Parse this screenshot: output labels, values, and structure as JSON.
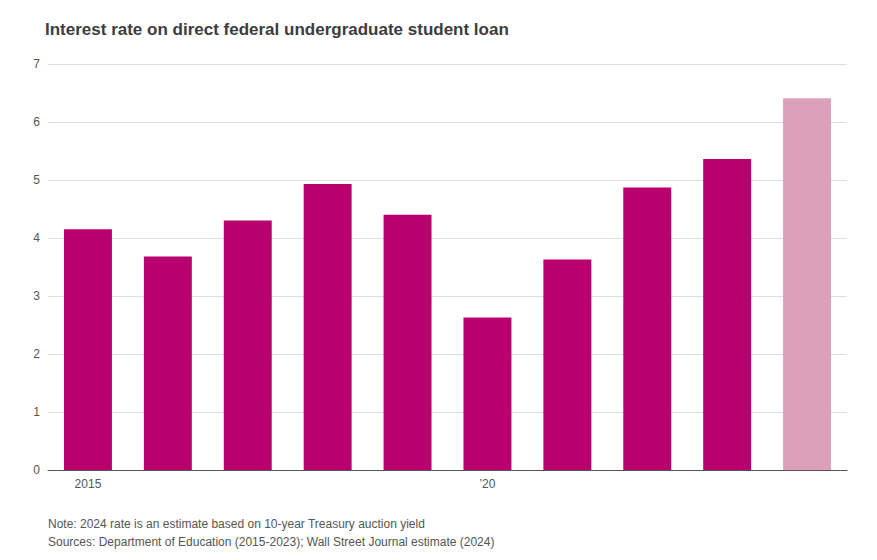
{
  "chart_data": {
    "type": "bar",
    "title": "Interest rate on direct federal undergraduate student loan",
    "categories": [
      "2015",
      null,
      null,
      null,
      null,
      "’20",
      null,
      null,
      null,
      null
    ],
    "values": [
      4.15,
      3.68,
      4.3,
      4.93,
      4.4,
      2.63,
      3.63,
      4.87,
      5.36,
      6.41
    ],
    "colors": [
      "#b8006e",
      "#b8006e",
      "#b8006e",
      "#b8006e",
      "#b8006e",
      "#b8006e",
      "#b8006e",
      "#b8006e",
      "#b8006e",
      "#dda0bb"
    ],
    "ylim": [
      0,
      7
    ],
    "yticks": [
      0,
      1,
      2,
      3,
      4,
      5,
      6,
      7
    ],
    "grid": true,
    "annotations": [
      "Note: 2024 rate is an estimate based on 10-year Treasury auction yield",
      "Sources: Department of Education (2015-2023); Wall Street Journal estimate (2024)"
    ]
  }
}
